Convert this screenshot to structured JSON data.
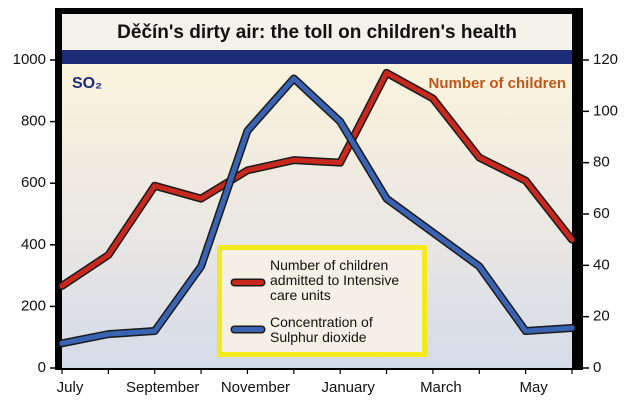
{
  "chart_data": {
    "type": "line",
    "title": "Děčín's dirty air: the toll on children's health",
    "y_label": "SO₂",
    "y2_label": "Number of children",
    "categories": [
      "July",
      null,
      "September",
      null,
      "November",
      null,
      "January",
      null,
      "March",
      null,
      "May",
      null
    ],
    "ylim": [
      0,
      1000
    ],
    "yticks": [
      0,
      200,
      400,
      600,
      800,
      1000
    ],
    "y2lim": [
      0,
      120
    ],
    "y2ticks": [
      0,
      20,
      40,
      60,
      80,
      100,
      120
    ],
    "series": [
      {
        "name": "Number of children admitted to Intensive care units",
        "color": "#c8281e",
        "axis": "y2",
        "values": [
          32,
          44,
          71,
          66,
          77,
          81,
          80,
          115,
          105,
          82,
          73,
          50
        ]
      },
      {
        "name": "Concentration of Sulphur dioxide",
        "color": "#3a63b4",
        "values": [
          80,
          110,
          120,
          330,
          770,
          940,
          800,
          550,
          440,
          330,
          120,
          130
        ]
      }
    ]
  }
}
